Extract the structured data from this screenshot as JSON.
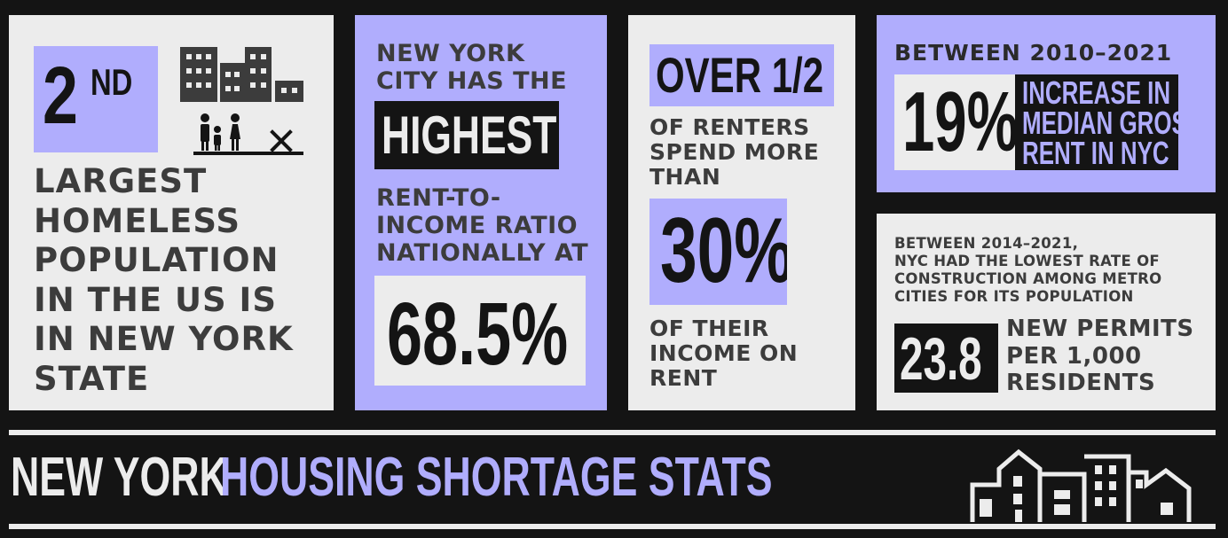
{
  "colors": {
    "background": "#141414",
    "panel_light": "#ececec",
    "panel_purple": "#b0adfd",
    "text_dark": "#3c3c3c",
    "text_light": "#ececec"
  },
  "panel1": {
    "rank_number": "2",
    "rank_suffix": "ND",
    "text_lines": [
      "LARGEST",
      "HOMELESS",
      "POPULATION",
      "IN THE US IS",
      "IN NEW YORK",
      "STATE"
    ],
    "icon": "homeless-family-buildings-icon"
  },
  "panel2": {
    "intro_lines": [
      "NEW YORK",
      "CITY HAS THE"
    ],
    "highlight": "HIGHEST",
    "middle_lines": [
      "RENT-TO-",
      "INCOME RATIO",
      "NATIONALLY AT"
    ],
    "value": "68.5%"
  },
  "panel3": {
    "headline": "OVER 1/2",
    "lines_a": [
      "OF RENTERS",
      "SPEND MORE",
      "THAN"
    ],
    "value": "30%",
    "lines_b": [
      "OF THEIR",
      "INCOME ON",
      "RENT"
    ]
  },
  "panel4": {
    "period": "BETWEEN 2010–2021",
    "value": "19%",
    "desc_lines": [
      "INCREASE IN",
      "MEDIAN GROSS",
      "RENT IN NYC"
    ]
  },
  "panel5": {
    "intro_lines": [
      "BETWEEN 2014–2021,",
      "NYC HAD THE LOWEST RATE OF",
      "CONSTRUCTION AMONG METRO",
      "CITIES FOR ITS POPULATION"
    ],
    "value": "23.8",
    "desc_lines": [
      "NEW PERMITS",
      "PER 1,000",
      "RESIDENTS"
    ]
  },
  "footer": {
    "title_part1": "NEW YORK",
    "title_part2": "HOUSING SHORTAGE STATS",
    "icon": "skyline-icon"
  }
}
